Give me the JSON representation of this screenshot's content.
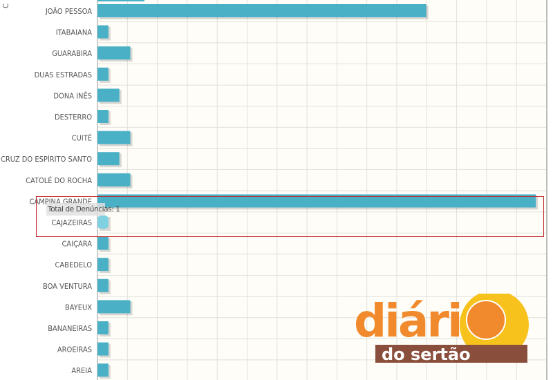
{
  "chart_data": {
    "type": "bar",
    "orientation": "horizontal",
    "ylabel": "C",
    "categories": [
      "JOÃO PESSOA",
      "ITABAIANA",
      "GUARABIRA",
      "DUAS ESTRADAS",
      "DONA INÊS",
      "DESTERRO",
      "CUITÉ",
      "CRUZ DO ESPÍRITO SANTO",
      "CATOLÉ DO ROCHA",
      "CAMPINA GRANDE",
      "CAJAZEIRAS",
      "CAIÇARA",
      "CABEDELO",
      "BOA VENTURA",
      "BAYEUX",
      "BANANEIRAS",
      "AROEIRAS",
      "AREIA"
    ],
    "values": [
      30,
      1,
      3,
      1,
      2,
      1,
      3,
      2,
      3,
      40,
      1,
      1,
      1,
      1,
      3,
      1,
      1,
      1
    ],
    "xlim": [
      0,
      41
    ],
    "grid": true,
    "bar_color": "#4ab0c6",
    "highlight_color": "#7fd0e0",
    "highlighted": "CAJAZEIRAS"
  },
  "tooltip": {
    "text": "Total de Denúncias: 1"
  },
  "logo": {
    "line1": "diári",
    "line2": "do sertão",
    "orange": "#f08a2c",
    "brown": "#8a4e3c",
    "yellow": "#f7c21c"
  }
}
